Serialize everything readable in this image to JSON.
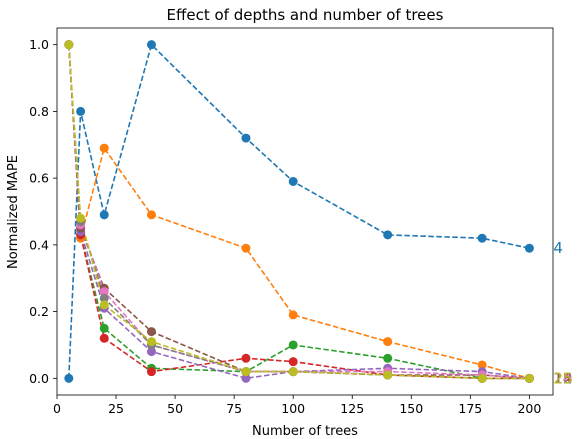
{
  "chart_data": {
    "type": "line",
    "title": "Effect of depths and number of trees",
    "xlabel": "Number of trees",
    "ylabel": "Normalized MAPE",
    "xlim": [
      0,
      210
    ],
    "ylim": [
      -0.05,
      1.05
    ],
    "xticks": [
      0,
      25,
      50,
      75,
      100,
      125,
      150,
      175,
      200
    ],
    "yticks": [
      0.0,
      0.2,
      0.4,
      0.6,
      0.8,
      1.0
    ],
    "ytick_labels": [
      "0.0",
      "0.2",
      "0.4",
      "0.6",
      "0.8",
      "1.0"
    ],
    "grid": false,
    "line_style": "dashed",
    "marker": "circle",
    "x": [
      5,
      10,
      20,
      40,
      80,
      100,
      140,
      180,
      200
    ],
    "series": [
      {
        "label": "4",
        "color": "#1f77b4",
        "values": [
          0.0,
          0.8,
          0.49,
          1.0,
          0.72,
          0.59,
          0.43,
          0.42,
          0.39
        ]
      },
      {
        "label": "",
        "color": "#ff7f0e",
        "values": [
          1.0,
          0.42,
          0.69,
          0.49,
          0.39,
          0.19,
          0.11,
          0.04,
          0.0
        ]
      },
      {
        "label": "",
        "color": "#2ca02c",
        "values": [
          1.0,
          0.43,
          0.15,
          0.03,
          0.02,
          0.1,
          0.06,
          0.0,
          0.0
        ]
      },
      {
        "label": "",
        "color": "#d62728",
        "values": [
          1.0,
          0.43,
          0.12,
          0.02,
          0.06,
          0.05,
          0.01,
          0.0,
          0.0
        ]
      },
      {
        "label": "",
        "color": "#9467bd",
        "values": [
          1.0,
          0.44,
          0.21,
          0.08,
          0.0,
          0.02,
          0.03,
          0.02,
          0.0
        ]
      },
      {
        "label": "",
        "color": "#8c564b",
        "values": [
          1.0,
          0.45,
          0.27,
          0.14,
          0.02,
          0.02,
          0.01,
          0.01,
          0.0
        ]
      },
      {
        "label": "",
        "color": "#e377c2",
        "values": [
          1.0,
          0.46,
          0.26,
          0.1,
          0.02,
          0.02,
          0.02,
          0.01,
          0.0
        ]
      },
      {
        "label": "",
        "color": "#7f7f7f",
        "values": [
          1.0,
          0.47,
          0.24,
          0.1,
          0.02,
          0.02,
          0.01,
          0.0,
          0.0
        ]
      },
      {
        "label": "",
        "color": "#bcbd22",
        "values": [
          1.0,
          0.48,
          0.22,
          0.11,
          0.02,
          0.02,
          0.01,
          0.0,
          0.0
        ]
      }
    ],
    "end_labels_right": [
      {
        "text": "10",
        "color": "#ff7f0e"
      },
      {
        "text": "12",
        "color": "#2ca02c"
      },
      {
        "text": "14",
        "color": "#d62728"
      },
      {
        "text": "16",
        "color": "#9467bd"
      },
      {
        "text": "18",
        "color": "#8c564b"
      },
      {
        "text": "20",
        "color": "#e377c2"
      },
      {
        "text": "22",
        "color": "#7f7f7f"
      },
      {
        "text": "25",
        "color": "#bcbd22"
      }
    ]
  }
}
